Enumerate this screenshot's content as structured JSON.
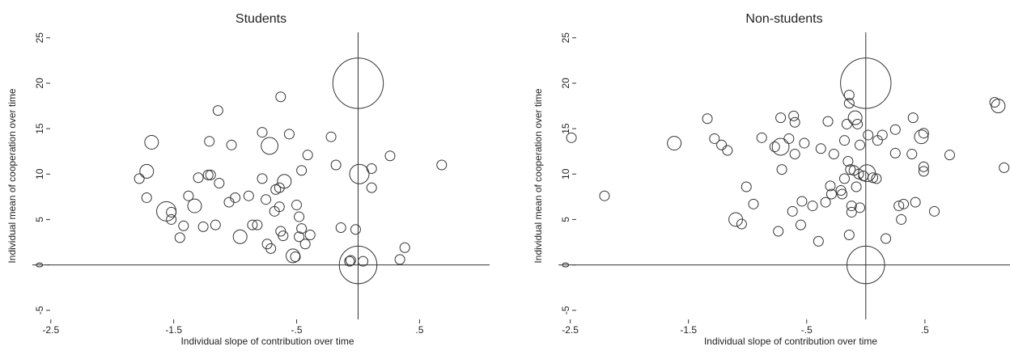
{
  "chart_data": [
    {
      "type": "scatter",
      "title": "Students",
      "xlabel": "Individual slope of contribution over time",
      "ylabel": "Individual mean of cooperation over time",
      "xlim": [
        -2.65,
        1.07
      ],
      "ylim": [
        -6,
        25.6
      ],
      "xticks": [
        -2.5,
        -1.5,
        {
          "value": -0.5,
          "label": "-.5"
        },
        {
          "value": 0.5,
          "label": ".5"
        }
      ],
      "yticks": [
        -5,
        0,
        5,
        10,
        15,
        20,
        25
      ],
      "x": [
        -1.78,
        -1.72,
        -1.72,
        -1.68,
        -1.56,
        -1.52,
        -1.52,
        -1.45,
        -1.42,
        -1.38,
        -1.33,
        -1.3,
        -1.26,
        -1.22,
        -1.2,
        -1.21,
        -1.16,
        -1.14,
        -1.13,
        -1.05,
        -1.03,
        -1.0,
        -0.96,
        -0.89,
        -0.86,
        -0.82,
        -0.78,
        -0.78,
        -0.75,
        -0.74,
        -0.72,
        -0.71,
        -0.68,
        -0.67,
        -0.64,
        -0.64,
        -0.63,
        -0.63,
        -0.61,
        -0.6,
        -0.56,
        -0.53,
        -0.51,
        -0.5,
        -0.48,
        -0.48,
        -0.46,
        -0.46,
        -0.43,
        -0.41,
        -0.39,
        -0.22,
        -0.18,
        -0.14,
        -0.07,
        -0.06,
        -0.02,
        0.01,
        0,
        0,
        0.04,
        0.11,
        0.11,
        0.26,
        0.34,
        0.38,
        0.68
      ],
      "values": [
        9.5,
        10.3,
        7.4,
        13.5,
        5.9,
        5.8,
        5,
        3,
        4.3,
        7.6,
        6.5,
        9.6,
        4.2,
        9.9,
        9.9,
        13.6,
        4.4,
        17,
        9,
        6.9,
        13.2,
        7.4,
        3.1,
        7.6,
        4.4,
        4.4,
        14.6,
        9.5,
        7.2,
        2.3,
        13.1,
        1.8,
        5.9,
        8.3,
        8.5,
        6.4,
        18.5,
        3.7,
        3.2,
        9.2,
        14.4,
        1,
        0.9,
        6.6,
        5.3,
        3.1,
        10.4,
        4,
        2.3,
        12.1,
        3.3,
        14.1,
        11,
        4.1,
        0.4,
        0.5,
        3.9,
        10,
        20,
        0,
        0.4,
        10.6,
        8.5,
        12,
        0.6,
        1.9,
        11
      ],
      "sizes": [
        1,
        2,
        1,
        2,
        4,
        1,
        1,
        1,
        1,
        1,
        2,
        1,
        1,
        1,
        1,
        1,
        1,
        1,
        1,
        1,
        1,
        1,
        2,
        1,
        1,
        1,
        1,
        1,
        1,
        1,
        3,
        1,
        1,
        1,
        1,
        1,
        1,
        1,
        1,
        2,
        1,
        2,
        1,
        1,
        1,
        1,
        1,
        1,
        1,
        1,
        1,
        1,
        1,
        1,
        1,
        1,
        1,
        4,
        27,
        15,
        1,
        1,
        1,
        1,
        1,
        1,
        1
      ]
    },
    {
      "type": "scatter",
      "title": "Non-students",
      "xlabel": "Individual slope of contribution over time",
      "ylabel": "Individual mean of cooperation over time",
      "xlim": [
        -2.6,
        1.22
      ],
      "ylim": [
        -6,
        25.6
      ],
      "xticks": [
        -2.5,
        -1.5,
        {
          "value": -0.5,
          "label": "-.5"
        },
        {
          "value": 0.5,
          "label": ".5"
        }
      ],
      "yticks": [
        -5,
        0,
        5,
        10,
        15,
        20,
        25
      ],
      "x": [
        -2.49,
        -2.21,
        -1.62,
        -1.34,
        -1.28,
        -1.22,
        -1.17,
        -1.1,
        -1.05,
        -1.01,
        -0.95,
        -0.88,
        -0.77,
        -0.74,
        -0.72,
        -0.72,
        -0.71,
        -0.65,
        -0.62,
        -0.61,
        -0.6,
        -0.6,
        -0.55,
        -0.54,
        -0.52,
        -0.45,
        -0.4,
        -0.38,
        -0.34,
        -0.32,
        -0.3,
        -0.29,
        -0.27,
        -0.21,
        -0.2,
        -0.18,
        -0.18,
        -0.16,
        -0.15,
        -0.14,
        -0.14,
        -0.14,
        -0.13,
        -0.12,
        -0.12,
        -0.1,
        -0.09,
        -0.08,
        -0.07,
        -0.06,
        -0.05,
        -0.05,
        -0.02,
        0,
        0,
        0.01,
        0.02,
        0.06,
        0.09,
        0.1,
        0.14,
        0.17,
        0.25,
        0.25,
        0.28,
        0.3,
        0.32,
        0.39,
        0.4,
        0.42,
        0.47,
        0.49,
        0.49,
        0.49,
        0.58,
        0.71,
        1.09,
        1.12,
        1.17
      ],
      "values": [
        14,
        7.6,
        13.4,
        16.1,
        13.9,
        13.2,
        12.6,
        5,
        4.5,
        8.6,
        6.7,
        14,
        13,
        3.7,
        13,
        16.2,
        10.5,
        13.9,
        5.9,
        16.4,
        15.7,
        12.2,
        4.4,
        7,
        13.4,
        6.5,
        2.6,
        12.8,
        6.9,
        15.8,
        8.7,
        7.8,
        12.2,
        8.2,
        7.8,
        13.7,
        9.5,
        15.5,
        11.4,
        17.8,
        18.7,
        3.3,
        10.5,
        5.8,
        6.5,
        10.4,
        16.2,
        8.6,
        15.5,
        10,
        13.2,
        6.3,
        9.8,
        20,
        0,
        10.1,
        14.3,
        9.6,
        9.5,
        13.7,
        14.3,
        2.9,
        12.3,
        14.9,
        6.5,
        5,
        6.7,
        12.2,
        16.2,
        6.9,
        14.1,
        14.5,
        10.8,
        10.3,
        5.9,
        12.1,
        17.9,
        17.5,
        10.7
      ],
      "sizes": [
        1,
        1,
        2,
        1,
        1,
        1,
        1,
        2,
        1,
        1,
        1,
        1,
        1,
        1,
        3,
        1,
        1,
        1,
        1,
        1,
        1,
        1,
        1,
        1,
        1,
        1,
        1,
        1,
        1,
        1,
        1,
        1,
        1,
        1,
        1,
        1,
        1,
        1,
        1,
        1,
        1,
        1,
        1,
        1,
        1,
        1,
        2,
        1,
        1,
        1,
        1,
        1,
        1,
        27,
        15,
        3,
        1,
        1,
        1,
        1,
        1,
        1,
        1,
        1,
        1,
        1,
        1,
        1,
        1,
        1,
        2,
        1,
        1,
        1,
        1,
        1,
        1,
        2,
        1
      ]
    }
  ]
}
